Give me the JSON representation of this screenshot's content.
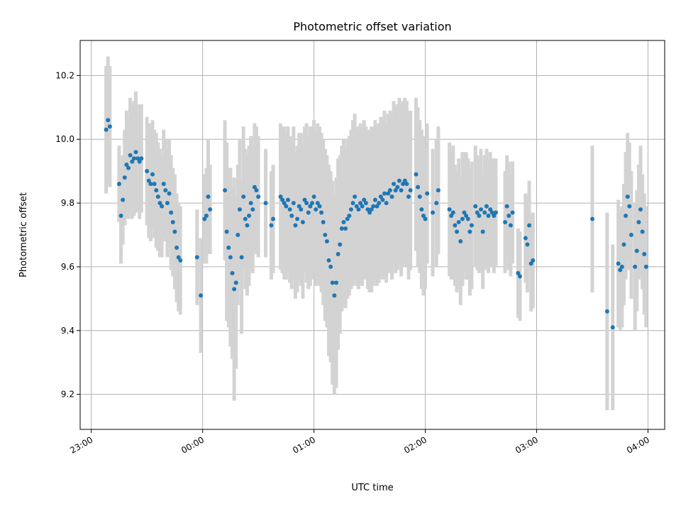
{
  "chart_data": {
    "type": "scatter",
    "title": "Photometric offset variation",
    "xlabel": "UTC time",
    "ylabel": "Photometric offset",
    "x_ticks": [
      "23:00",
      "00:00",
      "01:00",
      "02:00",
      "03:00",
      "04:00"
    ],
    "y_ticks": [
      "9.2",
      "9.4",
      "9.6",
      "9.8",
      "10.0",
      "10.2"
    ],
    "xlim": [
      "22:54",
      "04:09"
    ],
    "ylim": [
      9.09,
      10.31
    ],
    "grid": true,
    "colors": {
      "points": "#1f77b4",
      "errorbars": "#d3d3d3",
      "grid": "#b0b0b0"
    },
    "series": [
      {
        "points": [
          [
            "23:08",
            10.03,
            0.2
          ],
          [
            "23:09",
            10.06,
            0.2
          ],
          [
            "23:10",
            10.04,
            0.19
          ],
          [
            "23:15",
            9.86,
            0.12
          ],
          [
            "23:16",
            9.76,
            0.15
          ],
          [
            "23:17",
            9.81,
            0.14
          ],
          [
            "23:18",
            9.88,
            0.15
          ],
          [
            "23:19",
            9.92,
            0.17
          ],
          [
            "23:20",
            9.91,
            0.16
          ],
          [
            "23:21",
            9.95,
            0.18
          ],
          [
            "23:22",
            9.93,
            0.18
          ],
          [
            "23:23",
            9.94,
            0.18
          ],
          [
            "23:24",
            9.96,
            0.19
          ],
          [
            "23:25",
            9.94,
            0.17
          ],
          [
            "23:26",
            9.93,
            0.18
          ],
          [
            "23:27",
            9.94,
            0.17
          ],
          [
            "23:30",
            9.9,
            0.17
          ],
          [
            "23:31",
            9.87,
            0.18
          ],
          [
            "23:32",
            9.86,
            0.18
          ],
          [
            "23:33",
            9.89,
            0.17
          ],
          [
            "23:34",
            9.86,
            0.17
          ],
          [
            "23:35",
            9.84,
            0.18
          ],
          [
            "23:36",
            9.82,
            0.17
          ],
          [
            "23:37",
            9.8,
            0.17
          ],
          [
            "23:38",
            9.79,
            0.16
          ],
          [
            "23:39",
            9.86,
            0.17
          ],
          [
            "23:40",
            9.84,
            0.16
          ],
          [
            "23:41",
            9.8,
            0.17
          ],
          [
            "23:42",
            9.83,
            0.17
          ],
          [
            "23:43",
            9.77,
            0.18
          ],
          [
            "23:44",
            9.74,
            0.17
          ],
          [
            "23:45",
            9.71,
            0.18
          ],
          [
            "23:46",
            9.66,
            0.17
          ],
          [
            "23:47",
            9.63,
            0.17
          ],
          [
            "23:48",
            9.62,
            0.17
          ],
          [
            "23:57",
            9.63,
            0.15
          ],
          [
            "23:59",
            9.51,
            0.18
          ],
          [
            "00:01",
            9.75,
            0.14
          ],
          [
            "00:02",
            9.76,
            0.15
          ],
          [
            "00:03",
            9.82,
            0.18
          ],
          [
            "00:04",
            9.78,
            0.14
          ],
          [
            "00:12",
            9.84,
            0.22
          ],
          [
            "00:13",
            9.71,
            0.28
          ],
          [
            "00:14",
            9.66,
            0.25
          ],
          [
            "00:15",
            9.63,
            0.28
          ],
          [
            "00:16",
            9.58,
            0.27
          ],
          [
            "00:17",
            9.53,
            0.35
          ],
          [
            "00:18",
            9.55,
            0.27
          ],
          [
            "00:19",
            9.7,
            0.22
          ],
          [
            "00:20",
            9.78,
            0.22
          ],
          [
            "00:21",
            9.63,
            0.24
          ],
          [
            "00:22",
            9.82,
            0.22
          ],
          [
            "00:23",
            9.75,
            0.22
          ],
          [
            "00:24",
            9.73,
            0.22
          ],
          [
            "00:25",
            9.76,
            0.22
          ],
          [
            "00:26",
            9.8,
            0.21
          ],
          [
            "00:27",
            9.78,
            0.2
          ],
          [
            "00:28",
            9.85,
            0.2
          ],
          [
            "00:29",
            9.84,
            0.2
          ],
          [
            "00:30",
            9.82,
            0.19
          ],
          [
            "00:34",
            9.8,
            0.17
          ],
          [
            "00:37",
            9.73,
            0.17
          ],
          [
            "00:38",
            9.75,
            0.17
          ],
          [
            "00:42",
            9.82,
            0.23
          ],
          [
            "00:43",
            9.81,
            0.23
          ],
          [
            "00:44",
            9.8,
            0.24
          ],
          [
            "00:45",
            9.79,
            0.23
          ],
          [
            "00:46",
            9.81,
            0.23
          ],
          [
            "00:47",
            9.78,
            0.23
          ],
          [
            "00:48",
            9.76,
            0.23
          ],
          [
            "00:49",
            9.8,
            0.24
          ],
          [
            "00:50",
            9.73,
            0.23
          ],
          [
            "00:51",
            9.75,
            0.23
          ],
          [
            "00:52",
            9.79,
            0.23
          ],
          [
            "00:53",
            9.78,
            0.24
          ],
          [
            "00:54",
            9.74,
            0.24
          ],
          [
            "00:55",
            9.81,
            0.23
          ],
          [
            "00:56",
            9.8,
            0.25
          ],
          [
            "00:57",
            9.77,
            0.24
          ],
          [
            "00:58",
            9.79,
            0.25
          ],
          [
            "00:59",
            9.8,
            0.24
          ],
          [
            "01:00",
            9.82,
            0.24
          ],
          [
            "01:01",
            9.78,
            0.24
          ],
          [
            "01:02",
            9.8,
            0.25
          ],
          [
            "01:03",
            9.79,
            0.25
          ],
          [
            "01:04",
            9.77,
            0.25
          ],
          [
            "01:05",
            9.74,
            0.26
          ],
          [
            "01:06",
            9.7,
            0.27
          ],
          [
            "01:07",
            9.68,
            0.27
          ],
          [
            "01:08",
            9.62,
            0.3
          ],
          [
            "01:09",
            9.6,
            0.3
          ],
          [
            "01:10",
            9.55,
            0.32
          ],
          [
            "01:11",
            9.51,
            0.31
          ],
          [
            "01:12",
            9.55,
            0.33
          ],
          [
            "01:13",
            9.64,
            0.3
          ],
          [
            "01:14",
            9.67,
            0.28
          ],
          [
            "01:15",
            9.72,
            0.26
          ],
          [
            "01:16",
            9.74,
            0.26
          ],
          [
            "01:17",
            9.72,
            0.25
          ],
          [
            "01:18",
            9.75,
            0.25
          ],
          [
            "01:19",
            9.76,
            0.25
          ],
          [
            "01:20",
            9.78,
            0.25
          ],
          [
            "01:21",
            9.8,
            0.26
          ],
          [
            "01:22",
            9.82,
            0.26
          ],
          [
            "01:23",
            9.79,
            0.25
          ],
          [
            "01:24",
            9.78,
            0.25
          ],
          [
            "01:25",
            9.8,
            0.25
          ],
          [
            "01:26",
            9.79,
            0.25
          ],
          [
            "01:27",
            9.81,
            0.25
          ],
          [
            "01:28",
            9.8,
            0.24
          ],
          [
            "01:29",
            9.78,
            0.25
          ],
          [
            "01:30",
            9.77,
            0.25
          ],
          [
            "01:31",
            9.78,
            0.26
          ],
          [
            "01:32",
            9.79,
            0.25
          ],
          [
            "01:33",
            9.81,
            0.25
          ],
          [
            "01:34",
            9.79,
            0.25
          ],
          [
            "01:35",
            9.8,
            0.25
          ],
          [
            "01:36",
            9.82,
            0.25
          ],
          [
            "01:37",
            9.81,
            0.25
          ],
          [
            "01:38",
            9.83,
            0.26
          ],
          [
            "01:39",
            9.8,
            0.25
          ],
          [
            "01:40",
            9.83,
            0.25
          ],
          [
            "01:41",
            9.84,
            0.25
          ],
          [
            "01:42",
            9.82,
            0.26
          ],
          [
            "01:43",
            9.86,
            0.26
          ],
          [
            "01:44",
            9.84,
            0.26
          ],
          [
            "01:45",
            9.85,
            0.26
          ],
          [
            "01:46",
            9.87,
            0.26
          ],
          [
            "01:47",
            9.84,
            0.27
          ],
          [
            "01:48",
            9.86,
            0.26
          ],
          [
            "01:49",
            9.87,
            0.26
          ],
          [
            "01:50",
            9.86,
            0.26
          ],
          [
            "01:51",
            9.82,
            0.26
          ],
          [
            "01:52",
            9.84,
            0.25
          ],
          [
            "01:55",
            9.89,
            0.24
          ],
          [
            "01:56",
            9.85,
            0.25
          ],
          [
            "01:57",
            9.82,
            0.24
          ],
          [
            "01:58",
            9.78,
            0.25
          ],
          [
            "01:59",
            9.76,
            0.25
          ],
          [
            "02:00",
            9.75,
            0.22
          ],
          [
            "02:01",
            9.83,
            0.22
          ],
          [
            "02:04",
            9.77,
            0.2
          ],
          [
            "02:06",
            9.8,
            0.2
          ],
          [
            "02:07",
            9.84,
            0.2
          ],
          [
            "02:13",
            9.78,
            0.21
          ],
          [
            "02:14",
            9.76,
            0.2
          ],
          [
            "02:15",
            9.77,
            0.21
          ],
          [
            "02:16",
            9.73,
            0.19
          ],
          [
            "02:17",
            9.71,
            0.19
          ],
          [
            "02:18",
            9.74,
            0.2
          ],
          [
            "02:19",
            9.68,
            0.2
          ],
          [
            "02:20",
            9.75,
            0.21
          ],
          [
            "02:21",
            9.77,
            0.19
          ],
          [
            "02:22",
            9.76,
            0.2
          ],
          [
            "02:23",
            9.75,
            0.19
          ],
          [
            "02:24",
            9.71,
            0.2
          ],
          [
            "02:25",
            9.73,
            0.2
          ],
          [
            "02:27",
            9.79,
            0.19
          ],
          [
            "02:28",
            9.77,
            0.18
          ],
          [
            "02:29",
            9.76,
            0.18
          ],
          [
            "02:30",
            9.78,
            0.19
          ],
          [
            "02:31",
            9.71,
            0.18
          ],
          [
            "02:32",
            9.77,
            0.18
          ],
          [
            "02:33",
            9.79,
            0.18
          ],
          [
            "02:34",
            9.76,
            0.18
          ],
          [
            "02:35",
            9.78,
            0.18
          ],
          [
            "02:36",
            9.77,
            0.17
          ],
          [
            "02:37",
            9.76,
            0.18
          ],
          [
            "02:38",
            9.77,
            0.17
          ],
          [
            "02:43",
            9.74,
            0.16
          ],
          [
            "02:44",
            9.79,
            0.16
          ],
          [
            "02:45",
            9.76,
            0.17
          ],
          [
            "02:46",
            9.73,
            0.16
          ],
          [
            "02:47",
            9.77,
            0.16
          ],
          [
            "02:50",
            9.58,
            0.14
          ],
          [
            "02:51",
            9.57,
            0.14
          ],
          [
            "02:54",
            9.69,
            0.14
          ],
          [
            "02:55",
            9.67,
            0.15
          ],
          [
            "02:56",
            9.73,
            0.14
          ],
          [
            "02:57",
            9.61,
            0.15
          ],
          [
            "02:58",
            9.62,
            0.15
          ],
          [
            "03:30",
            9.75,
            0.23
          ],
          [
            "03:38",
            9.46,
            0.31
          ],
          [
            "03:41",
            9.41,
            0.26
          ],
          [
            "03:44",
            9.61,
            0.2
          ],
          [
            "03:45",
            9.59,
            0.19
          ],
          [
            "03:46",
            9.6,
            0.19
          ],
          [
            "03:47",
            9.67,
            0.19
          ],
          [
            "03:48",
            9.76,
            0.2
          ],
          [
            "03:49",
            9.82,
            0.2
          ],
          [
            "03:50",
            9.79,
            0.2
          ],
          [
            "03:51",
            9.7,
            0.2
          ],
          [
            "03:53",
            9.6,
            0.2
          ],
          [
            "03:54",
            9.65,
            0.19
          ],
          [
            "03:55",
            9.74,
            0.18
          ],
          [
            "03:56",
            9.78,
            0.2
          ],
          [
            "03:57",
            9.71,
            0.18
          ],
          [
            "03:58",
            9.64,
            0.19
          ],
          [
            "03:59",
            9.6,
            0.19
          ]
        ]
      }
    ]
  }
}
